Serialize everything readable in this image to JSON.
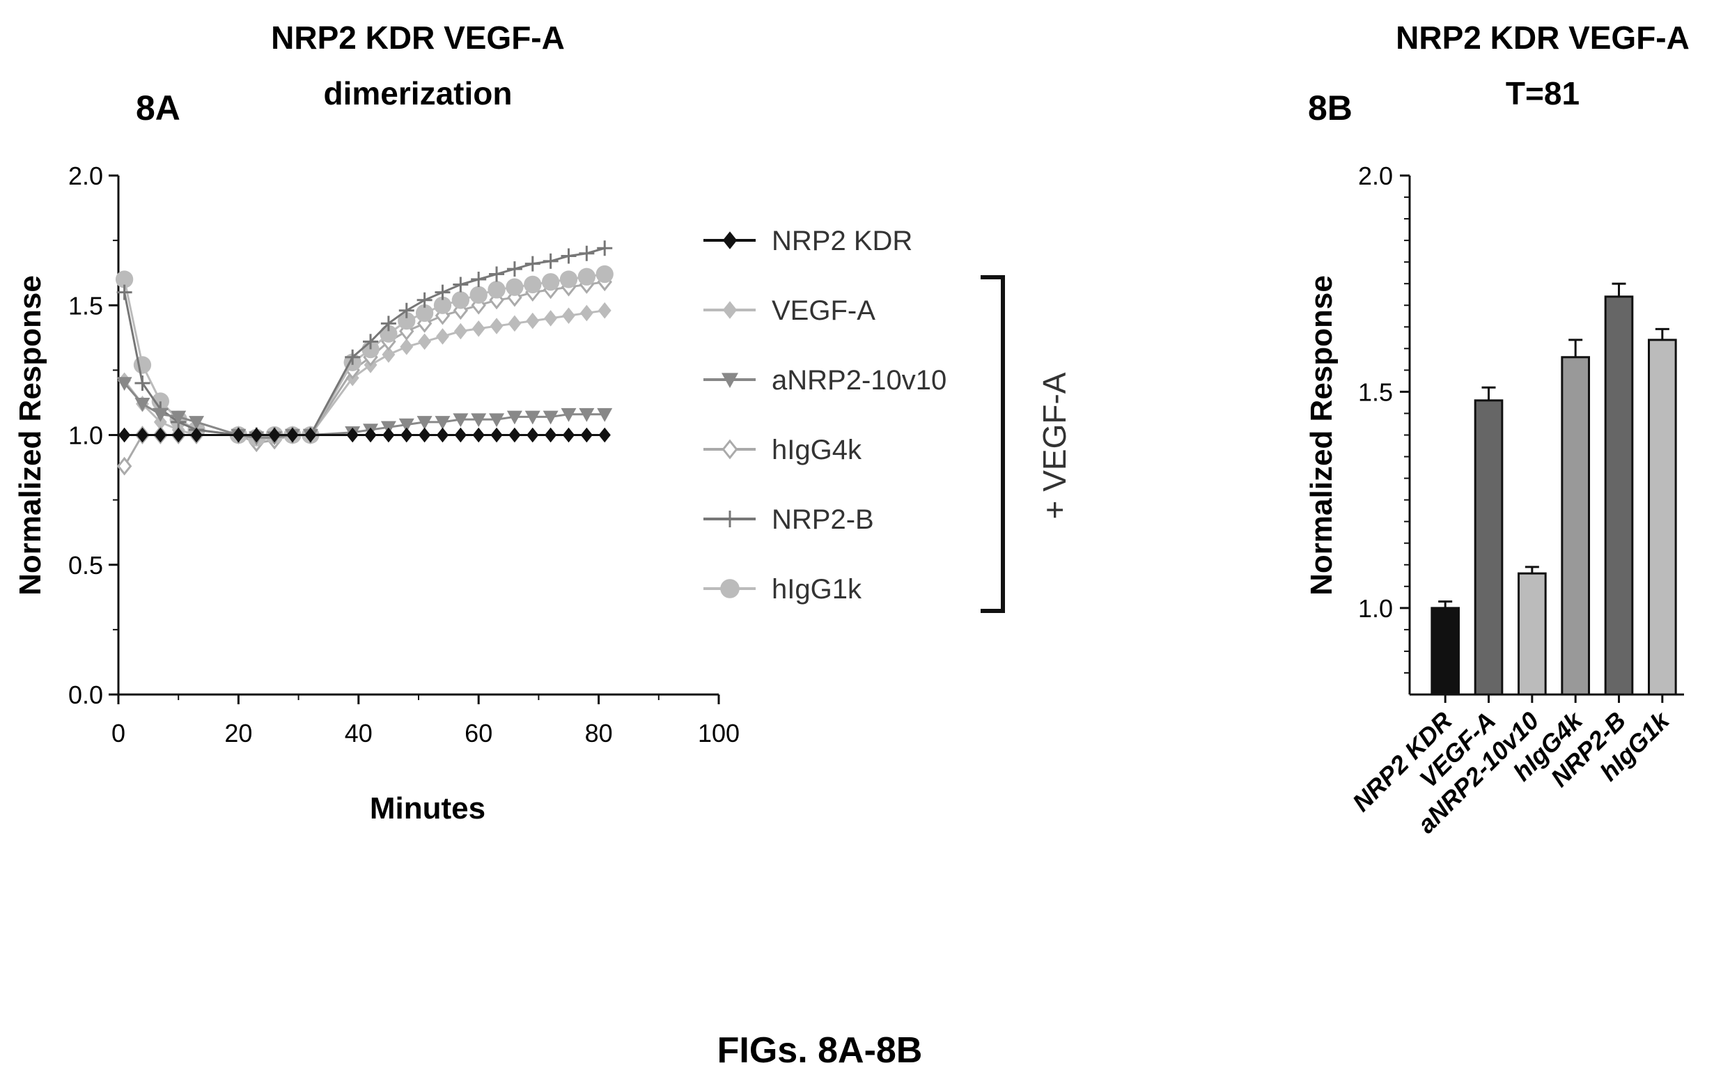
{
  "caption": "FIGs. 8A-8B",
  "colors": {
    "black": "#111111",
    "dark_gray": "#777777",
    "mid_gray": "#999999",
    "light_gray": "#bbbbbb"
  },
  "bracket_label": "+ VEGF-A",
  "chart_data": [
    {
      "panel": "8A",
      "type": "line",
      "title_lines": [
        "NRP2 KDR VEGF-A",
        "dimerization"
      ],
      "xlabel": "Minutes",
      "ylabel": "Normalized Response",
      "xlim": [
        0,
        100
      ],
      "ylim": [
        0,
        2.0
      ],
      "xticks": [
        "0",
        "20",
        "40",
        "60",
        "80",
        "100"
      ],
      "yticks": [
        "0.0",
        "0.5",
        "1.0",
        "1.5",
        "2.0"
      ],
      "legend_position": "right",
      "x": [
        1,
        4,
        7,
        10,
        13,
        20,
        23,
        26,
        29,
        32,
        39,
        42,
        45,
        48,
        51,
        54,
        57,
        60,
        63,
        66,
        69,
        72,
        75,
        78,
        81
      ],
      "series": [
        {
          "name": "NRP2 KDR",
          "marker": "diamond",
          "color": "#111111",
          "values": [
            1.0,
            1.0,
            1.0,
            1.0,
            1.0,
            1.0,
            1.0,
            1.0,
            1.0,
            1.0,
            1.0,
            1.0,
            1.0,
            1.0,
            1.0,
            1.0,
            1.0,
            1.0,
            1.0,
            1.0,
            1.0,
            1.0,
            1.0,
            1.0,
            1.0
          ]
        },
        {
          "name": "VEGF-A",
          "marker": "diamond",
          "color": "#bbbbbb",
          "values": [
            1.21,
            1.12,
            1.05,
            1.02,
            1.0,
            1.0,
            0.98,
            0.99,
            1.0,
            1.0,
            1.22,
            1.27,
            1.31,
            1.34,
            1.36,
            1.38,
            1.4,
            1.41,
            1.42,
            1.43,
            1.44,
            1.45,
            1.46,
            1.47,
            1.48
          ]
        },
        {
          "name": "aNRP2-10v10",
          "marker": "triangle-down",
          "color": "#888888",
          "values": [
            1.2,
            1.12,
            1.08,
            1.07,
            1.05,
            1.0,
            0.99,
            0.99,
            1.0,
            1.0,
            1.01,
            1.02,
            1.03,
            1.04,
            1.05,
            1.05,
            1.06,
            1.06,
            1.06,
            1.07,
            1.07,
            1.07,
            1.08,
            1.08,
            1.08
          ]
        },
        {
          "name": "hIgG4k",
          "marker": "diamond-open",
          "color": "#aaaaaa",
          "values": [
            0.88,
            1.0,
            1.0,
            1.0,
            1.0,
            1.0,
            0.97,
            0.98,
            1.0,
            1.0,
            1.25,
            1.3,
            1.36,
            1.4,
            1.43,
            1.46,
            1.48,
            1.5,
            1.52,
            1.53,
            1.55,
            1.56,
            1.57,
            1.58,
            1.59
          ]
        },
        {
          "name": "NRP2-B",
          "marker": "plus",
          "color": "#777777",
          "values": [
            1.55,
            1.2,
            1.1,
            1.05,
            1.02,
            1.0,
            1.0,
            1.0,
            1.0,
            1.0,
            1.3,
            1.36,
            1.43,
            1.48,
            1.52,
            1.55,
            1.58,
            1.6,
            1.62,
            1.64,
            1.66,
            1.67,
            1.69,
            1.7,
            1.72
          ]
        },
        {
          "name": "hIgG1k",
          "marker": "circle",
          "color": "#bbbbbb",
          "values": [
            1.6,
            1.27,
            1.13,
            1.06,
            1.02,
            1.0,
            0.99,
            1.0,
            1.0,
            1.0,
            1.28,
            1.33,
            1.39,
            1.44,
            1.47,
            1.5,
            1.52,
            1.54,
            1.56,
            1.57,
            1.58,
            1.59,
            1.6,
            1.61,
            1.62
          ]
        }
      ]
    },
    {
      "panel": "8B",
      "type": "bar",
      "title_lines": [
        "NRP2 KDR VEGF-A",
        "T=81"
      ],
      "xlabel": "",
      "ylabel": "Normalized Response",
      "ylim": [
        0.8,
        2.0
      ],
      "yticks": [
        "1.0",
        "1.5",
        "2.0"
      ],
      "categories": [
        "NRP2 KDR",
        "VEGF-A",
        "aNRP2-10v10",
        "hIgG4k",
        "NRP2-B",
        "hIgG1k"
      ],
      "values": [
        1.0,
        1.48,
        1.08,
        1.58,
        1.72,
        1.62
      ],
      "errors": [
        0.015,
        0.03,
        0.015,
        0.04,
        0.03,
        0.025
      ],
      "colors": [
        "#111111",
        "#666666",
        "#bbbbbb",
        "#999999",
        "#666666",
        "#bbbbbb"
      ]
    }
  ]
}
